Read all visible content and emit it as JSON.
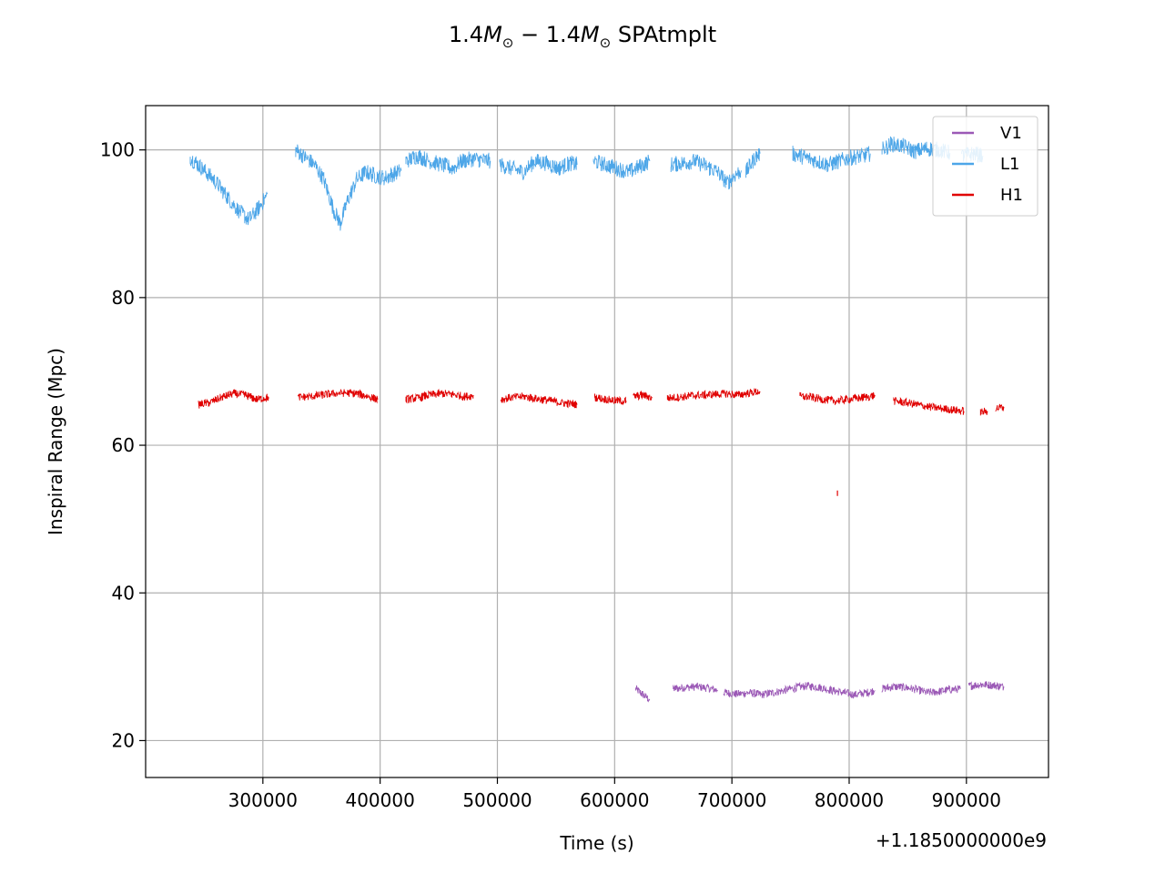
{
  "chart_data": {
    "type": "line",
    "title_prefix": "1.4",
    "title_sym": "M",
    "title_sub": "⊙",
    "title_mid": " − 1.4",
    "title_suffix": " SPAtmplt",
    "xlabel": "Time (s)",
    "ylabel": "Inspiral Range (Mpc)",
    "x_offset_label": "+1.1850000000e9",
    "xlim": [
      200000,
      970000
    ],
    "ylim": [
      15,
      106
    ],
    "xticks": [
      300000,
      400000,
      500000,
      600000,
      700000,
      800000,
      900000
    ],
    "xtick_labels": [
      "300000",
      "400000",
      "500000",
      "600000",
      "700000",
      "800000",
      "900000"
    ],
    "yticks": [
      20,
      40,
      60,
      80,
      100
    ],
    "ytick_labels": [
      "20",
      "40",
      "60",
      "80",
      "100"
    ],
    "grid": true,
    "legend_position": "upper-right",
    "series": [
      {
        "name": "V1",
        "color": "#9b59b6",
        "segments": [
          [
            [
              618000,
              27
            ],
            [
              622000,
              26.5
            ],
            [
              626000,
              26
            ],
            [
              630000,
              25.5
            ]
          ],
          [
            [
              650000,
              27
            ],
            [
              660000,
              27.2
            ],
            [
              670000,
              27.3
            ],
            [
              680000,
              27.1
            ],
            [
              688000,
              26.8
            ]
          ],
          [
            [
              693000,
              26.5
            ],
            [
              705000,
              26.3
            ],
            [
              715000,
              26.5
            ],
            [
              725000,
              26.2
            ],
            [
              735000,
              26.5
            ],
            [
              745000,
              26.8
            ],
            [
              755000,
              27.2
            ],
            [
              765000,
              27.4
            ],
            [
              775000,
              27.2
            ],
            [
              785000,
              26.8
            ],
            [
              795000,
              26.5
            ],
            [
              805000,
              26.2
            ],
            [
              815000,
              26.5
            ],
            [
              822000,
              26.8
            ]
          ],
          [
            [
              828000,
              27
            ],
            [
              838000,
              27.3
            ],
            [
              848000,
              27.2
            ],
            [
              858000,
              26.9
            ],
            [
              866000,
              26.5
            ],
            [
              875000,
              26.6
            ],
            [
              885000,
              26.9
            ],
            [
              895000,
              27.0
            ]
          ],
          [
            [
              902000,
              27.4
            ],
            [
              912000,
              27.6
            ],
            [
              922000,
              27.5
            ],
            [
              932000,
              27.3
            ]
          ]
        ]
      },
      {
        "name": "L1",
        "color": "#4da6e8",
        "segments": [
          [
            [
              238000,
              99
            ],
            [
              248000,
              97.5
            ],
            [
              258000,
              96
            ],
            [
              268000,
              94
            ],
            [
              278000,
              92
            ],
            [
              288000,
              90.5
            ],
            [
              296000,
              92
            ],
            [
              304000,
              94
            ]
          ],
          [
            [
              328000,
              100
            ],
            [
              336000,
              99
            ],
            [
              344000,
              98
            ],
            [
              352000,
              96
            ],
            [
              360000,
              92
            ],
            [
              366000,
              90
            ],
            [
              372000,
              93
            ],
            [
              380000,
              96
            ],
            [
              388000,
              97
            ],
            [
              396000,
              96.5
            ],
            [
              404000,
              96.2
            ],
            [
              412000,
              96.8
            ],
            [
              418000,
              97.2
            ]
          ],
          [
            [
              422000,
              98.5
            ],
            [
              432000,
              99.2
            ],
            [
              442000,
              98.5
            ],
            [
              452000,
              98
            ],
            [
              462000,
              97.5
            ],
            [
              470000,
              98.5
            ],
            [
              480000,
              98.8
            ],
            [
              488000,
              98.6
            ],
            [
              494000,
              98.5
            ]
          ],
          [
            [
              502000,
              98
            ],
            [
              512000,
              97.5
            ],
            [
              522000,
              97
            ],
            [
              532000,
              98.5
            ],
            [
              542000,
              98.2
            ],
            [
              552000,
              97.5
            ],
            [
              562000,
              98.2
            ],
            [
              568000,
              98
            ]
          ],
          [
            [
              582000,
              98.5
            ],
            [
              592000,
              98
            ],
            [
              602000,
              97.5
            ],
            [
              612000,
              97
            ],
            [
              622000,
              97.8
            ],
            [
              630000,
              98.5
            ]
          ],
          [
            [
              648000,
              98
            ],
            [
              658000,
              98.2
            ],
            [
              668000,
              98.5
            ],
            [
              678000,
              97.8
            ],
            [
              688000,
              97
            ],
            [
              696000,
              95.5
            ],
            [
              702000,
              96.5
            ],
            [
              708000,
              97.2
            ]
          ],
          [
            [
              712000,
              97
            ],
            [
              716000,
              98
            ],
            [
              720000,
              99
            ],
            [
              724000,
              99.5
            ]
          ],
          [
            [
              752000,
              99.5
            ],
            [
              762000,
              99
            ],
            [
              772000,
              98.5
            ],
            [
              782000,
              98
            ],
            [
              792000,
              98.5
            ],
            [
              802000,
              99
            ],
            [
              812000,
              99.2
            ],
            [
              818000,
              99.5
            ]
          ],
          [
            [
              828000,
              100
            ],
            [
              836000,
              100.8
            ],
            [
              846000,
              100.5
            ],
            [
              856000,
              99.8
            ],
            [
              866000,
              100.2
            ],
            [
              876000,
              100
            ],
            [
              886000,
              99.6
            ]
          ],
          [
            [
              896000,
              99.2
            ],
            [
              906000,
              99.5
            ],
            [
              914000,
              99.2
            ]
          ]
        ]
      },
      {
        "name": "H1",
        "color": "#e00000",
        "segments": [
          [
            [
              245000,
              65.5
            ],
            [
              255000,
              65.8
            ],
            [
              265000,
              66.5
            ],
            [
              275000,
              67
            ],
            [
              285000,
              66.8
            ],
            [
              295000,
              66.2
            ],
            [
              305000,
              66.5
            ]
          ],
          [
            [
              330000,
              66.5
            ],
            [
              340000,
              66.6
            ],
            [
              350000,
              66.8
            ],
            [
              360000,
              67
            ],
            [
              370000,
              67.1
            ],
            [
              380000,
              67
            ],
            [
              390000,
              66.6
            ],
            [
              398000,
              66.2
            ]
          ],
          [
            [
              422000,
              66.2
            ],
            [
              432000,
              66.4
            ],
            [
              442000,
              66.8
            ],
            [
              452000,
              67
            ],
            [
              462000,
              66.9
            ],
            [
              472000,
              66.6
            ],
            [
              480000,
              66.7
            ]
          ],
          [
            [
              503000,
              66.2
            ],
            [
              513000,
              66.5
            ],
            [
              523000,
              66.6
            ],
            [
              533000,
              66.3
            ],
            [
              543000,
              66.1
            ],
            [
              553000,
              65.8
            ],
            [
              563000,
              65.6
            ],
            [
              568000,
              65.5
            ]
          ],
          [
            [
              583000,
              66.5
            ],
            [
              593000,
              66.2
            ],
            [
              603000,
              66
            ],
            [
              610000,
              66
            ]
          ],
          [
            [
              616000,
              66.6
            ],
            [
              624000,
              66.8
            ],
            [
              632000,
              66.4
            ]
          ],
          [
            [
              645000,
              66.4
            ],
            [
              655000,
              66.5
            ],
            [
              665000,
              66.7
            ],
            [
              675000,
              66.8
            ],
            [
              685000,
              66.9
            ],
            [
              695000,
              67
            ],
            [
              705000,
              66.8
            ],
            [
              715000,
              67.1
            ],
            [
              724000,
              67.3
            ]
          ],
          [
            [
              758000,
              66.6
            ],
            [
              768000,
              66.5
            ],
            [
              778000,
              66.2
            ],
            [
              788000,
              66
            ],
            [
              798000,
              66.2
            ],
            [
              808000,
              66.4
            ],
            [
              818000,
              66.6
            ],
            [
              822000,
              66.8
            ]
          ],
          [
            [
              838000,
              66
            ],
            [
              848000,
              65.8
            ],
            [
              858000,
              65.5
            ],
            [
              868000,
              65.2
            ],
            [
              878000,
              65
            ],
            [
              888000,
              64.8
            ],
            [
              898000,
              64.6
            ]
          ],
          [
            [
              912000,
              64.5
            ],
            [
              918000,
              64.6
            ]
          ],
          [
            [
              925000,
              65
            ],
            [
              932000,
              65.2
            ]
          ]
        ]
      }
    ],
    "outliers": [
      {
        "series": "H1",
        "x": 790000,
        "y": 53.5
      }
    ]
  }
}
